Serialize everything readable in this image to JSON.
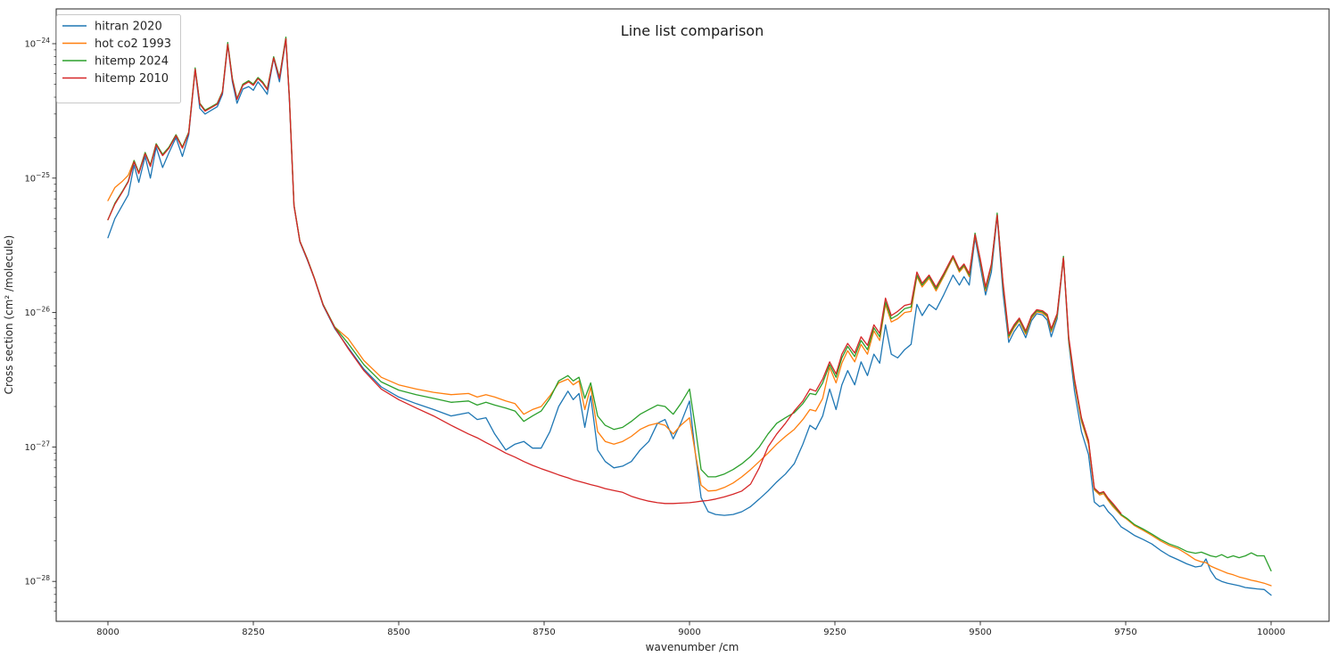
{
  "chart_data": {
    "type": "line",
    "title": "Line list comparison",
    "xlabel": "wavenumber /cm",
    "ylabel": "Cross section (cm² /molecule)",
    "grid": false,
    "y_scale": "log",
    "legend_position": "upper left",
    "xlim": [
      7911,
      10100
    ],
    "ylim": [
      5e-29,
      1.8e-24
    ],
    "xticks": [
      8000,
      8250,
      8500,
      8750,
      9000,
      9250,
      9500,
      9750,
      10000
    ],
    "ytick_exponents": [
      -24,
      -25,
      -26,
      -27,
      -28
    ],
    "x": [
      8000,
      8012,
      8025,
      8035,
      8045,
      8053,
      8064,
      8073,
      8083,
      8094,
      8105,
      8117,
      8128,
      8139,
      8150,
      8158,
      8167,
      8178,
      8188,
      8197,
      8206,
      8214,
      8222,
      8232,
      8242,
      8250,
      8258,
      8266,
      8274,
      8285,
      8295,
      8306,
      8312,
      8320,
      8330,
      8343,
      8355,
      8370,
      8390,
      8413,
      8440,
      8470,
      8500,
      8530,
      8560,
      8590,
      8620,
      8635,
      8650,
      8665,
      8684,
      8700,
      8715,
      8730,
      8745,
      8760,
      8775,
      8791,
      8800,
      8810,
      8820,
      8830,
      8842,
      8855,
      8870,
      8885,
      8900,
      8915,
      8930,
      8945,
      8958,
      8972,
      8985,
      9000,
      9010,
      9020,
      9032,
      9045,
      9060,
      9075,
      9090,
      9105,
      9120,
      9135,
      9150,
      9165,
      9180,
      9195,
      9207,
      9217,
      9229,
      9241,
      9252,
      9262,
      9272,
      9284,
      9295,
      9306,
      9317,
      9327,
      9337,
      9347,
      9358,
      9370,
      9381,
      9391,
      9400,
      9412,
      9424,
      9437,
      9453,
      9464,
      9472,
      9481,
      9491,
      9500,
      9509,
      9519,
      9529,
      9539,
      9549,
      9558,
      9567,
      9578,
      9588,
      9597,
      9607,
      9615,
      9622,
      9632,
      9643,
      9652,
      9662,
      9674,
      9686,
      9696,
      9705,
      9712,
      9720,
      9728,
      9742,
      9752,
      9765,
      9780,
      9795,
      9810,
      9825,
      9840,
      9855,
      9870,
      9880,
      9888,
      9896,
      9905,
      9915,
      9925,
      9935,
      9945,
      9956,
      9966,
      9976,
      9988,
      10000
    ],
    "series": [
      {
        "name": "hitran 2020",
        "color": "#1f77b4",
        "y": [
          3.6e-26,
          5e-26,
          6.3e-26,
          7.5e-26,
          1.25e-25,
          9.3e-26,
          1.45e-25,
          1e-25,
          1.7e-25,
          1.2e-25,
          1.55e-25,
          2e-25,
          1.45e-25,
          2.1e-25,
          6.4e-25,
          3.3e-25,
          3e-25,
          3.2e-25,
          3.4e-25,
          4.2e-25,
          9.8e-25,
          5.2e-25,
          3.6e-25,
          4.6e-25,
          4.8e-25,
          4.5e-25,
          5.2e-25,
          4.7e-25,
          4.2e-25,
          7.8e-25,
          5.2e-25,
          1.08e-24,
          3.8e-25,
          6.2e-26,
          3.35e-26,
          2.45e-26,
          1.78e-26,
          1.13e-26,
          7.6e-27,
          5.5e-27,
          3.8e-27,
          2.8e-27,
          2.35e-27,
          2.1e-27,
          1.9e-27,
          1.7e-27,
          1.8e-27,
          1.6e-27,
          1.65e-27,
          1.25e-27,
          9.5e-28,
          1.05e-27,
          1.1e-27,
          9.8e-28,
          9.8e-28,
          1.3e-27,
          2e-27,
          2.6e-27,
          2.25e-27,
          2.5e-27,
          1.4e-27,
          2.4e-27,
          9.5e-28,
          7.8e-28,
          7e-28,
          7.2e-28,
          7.8e-28,
          9.5e-28,
          1.1e-27,
          1.5e-27,
          1.6e-27,
          1.15e-27,
          1.5e-27,
          2.2e-27,
          9e-28,
          4.2e-28,
          3.3e-28,
          3.15e-28,
          3.1e-28,
          3.15e-28,
          3.3e-28,
          3.6e-28,
          4.1e-28,
          4.7e-28,
          5.5e-28,
          6.3e-28,
          7.5e-28,
          1.05e-27,
          1.45e-27,
          1.35e-27,
          1.7e-27,
          2.7e-27,
          1.9e-27,
          2.9e-27,
          3.7e-27,
          2.9e-27,
          4.3e-27,
          3.4e-27,
          4.9e-27,
          4.2e-27,
          8.1e-27,
          4.9e-27,
          4.6e-27,
          5.3e-27,
          5.8e-27,
          1.15e-26,
          9.5e-27,
          1.15e-26,
          1.05e-26,
          1.35e-26,
          1.9e-26,
          1.6e-26,
          1.85e-26,
          1.6e-26,
          3.6e-26,
          2.2e-26,
          1.35e-26,
          2e-26,
          5.2e-26,
          1.4e-26,
          6e-27,
          7.2e-27,
          8.2e-27,
          6.5e-27,
          8.7e-27,
          9.8e-27,
          9.6e-27,
          8.8e-27,
          6.6e-27,
          9e-27,
          2.55e-26,
          6e-27,
          2.6e-27,
          1.3e-27,
          8.8e-28,
          3.9e-28,
          3.6e-28,
          3.7e-28,
          3.3e-28,
          3.05e-28,
          2.55e-28,
          2.4e-28,
          2.2e-28,
          2.05e-28,
          1.9e-28,
          1.7e-28,
          1.55e-28,
          1.45e-28,
          1.35e-28,
          1.28e-28,
          1.3e-28,
          1.47e-28,
          1.2e-28,
          1.05e-28,
          1e-28,
          9.7e-29,
          9.5e-29,
          9.3e-29,
          9e-29,
          8.9e-29,
          8.8e-29,
          8.7e-29,
          7.9e-29
        ]
      },
      {
        "name": "hot co2 1993",
        "color": "#ff7f0e",
        "y": [
          6.8e-26,
          8.5e-26,
          9.5e-26,
          1.05e-25,
          1.35e-25,
          1.1e-25,
          1.55e-25,
          1.25e-25,
          1.8e-25,
          1.5e-25,
          1.7e-25,
          2.1e-25,
          1.7e-25,
          2.2e-25,
          6.5e-25,
          3.6e-25,
          3.2e-25,
          3.4e-25,
          3.6e-25,
          4.4e-25,
          1e-24,
          5.5e-25,
          3.9e-25,
          5e-25,
          5.3e-25,
          5e-25,
          5.6e-25,
          5.2e-25,
          4.6e-25,
          7.9e-25,
          5.6e-25,
          1.1e-24,
          4e-25,
          6.3e-26,
          3.4e-26,
          2.5e-26,
          1.8e-26,
          1.15e-26,
          7.8e-27,
          6.4e-27,
          4.4e-27,
          3.3e-27,
          2.9e-27,
          2.7e-27,
          2.55e-27,
          2.45e-27,
          2.5e-27,
          2.35e-27,
          2.45e-27,
          2.35e-27,
          2.2e-27,
          2.1e-27,
          1.75e-27,
          1.9e-27,
          2e-27,
          2.4e-27,
          3e-27,
          3.2e-27,
          2.9e-27,
          3.1e-27,
          1.9e-27,
          2.8e-27,
          1.3e-27,
          1.1e-27,
          1.05e-27,
          1.1e-27,
          1.2e-27,
          1.35e-27,
          1.45e-27,
          1.5e-27,
          1.45e-27,
          1.25e-27,
          1.45e-27,
          1.65e-27,
          9e-28,
          5.2e-28,
          4.7e-28,
          4.75e-28,
          5e-28,
          5.4e-28,
          6e-28,
          6.8e-28,
          7.8e-28,
          9e-28,
          1.05e-27,
          1.2e-27,
          1.35e-27,
          1.6e-27,
          1.9e-27,
          1.85e-27,
          2.3e-27,
          3.9e-27,
          3e-27,
          4.2e-27,
          5.2e-27,
          4.3e-27,
          5.8e-27,
          4.9e-27,
          7.3e-27,
          6.2e-27,
          1.15e-26,
          8.5e-27,
          9e-27,
          1e-26,
          1.02e-26,
          1.85e-26,
          1.55e-26,
          1.8e-26,
          1.45e-26,
          1.85e-26,
          2.55e-26,
          2e-26,
          2.2e-26,
          1.85e-26,
          3.75e-26,
          2.4e-26,
          1.45e-26,
          2.2e-26,
          5.35e-26,
          1.6e-26,
          6.5e-27,
          7.7e-27,
          8.7e-27,
          6.9e-27,
          9.1e-27,
          1.01e-26,
          9.9e-27,
          9.3e-27,
          7.2e-27,
          9.4e-27,
          2.58e-26,
          6.2e-27,
          3e-27,
          1.55e-27,
          1.05e-27,
          4.8e-28,
          4.4e-28,
          4.5e-28,
          4e-28,
          3.6e-28,
          3.1e-28,
          2.9e-28,
          2.6e-28,
          2.4e-28,
          2.2e-28,
          2e-28,
          1.85e-28,
          1.75e-28,
          1.6e-28,
          1.45e-28,
          1.4e-28,
          1.38e-28,
          1.3e-28,
          1.25e-28,
          1.2e-28,
          1.15e-28,
          1.12e-28,
          1.08e-28,
          1.05e-28,
          1.02e-28,
          1e-28,
          9.7e-29,
          9.3e-29
        ]
      },
      {
        "name": "hitemp 2024",
        "color": "#2ca02c",
        "y": [
          4.9e-26,
          6.5e-26,
          8e-26,
          9.5e-26,
          1.35e-25,
          1.1e-25,
          1.55e-25,
          1.25e-25,
          1.8e-25,
          1.5e-25,
          1.7e-25,
          2.1e-25,
          1.7e-25,
          2.2e-25,
          6.6e-25,
          3.6e-25,
          3.2e-25,
          3.4e-25,
          3.6e-25,
          4.4e-25,
          1.02e-24,
          5.5e-25,
          3.9e-25,
          5e-25,
          5.3e-25,
          5e-25,
          5.6e-25,
          5.2e-25,
          4.6e-25,
          8e-25,
          5.6e-25,
          1.12e-24,
          4e-25,
          6.3e-26,
          3.4e-26,
          2.5e-26,
          1.8e-26,
          1.15e-26,
          7.8e-27,
          5.9e-27,
          4.1e-27,
          3.05e-27,
          2.65e-27,
          2.45e-27,
          2.3e-27,
          2.15e-27,
          2.2e-27,
          2.05e-27,
          2.15e-27,
          2.05e-27,
          1.95e-27,
          1.85e-27,
          1.55e-27,
          1.7e-27,
          1.85e-27,
          2.3e-27,
          3.1e-27,
          3.4e-27,
          3.1e-27,
          3.3e-27,
          2.3e-27,
          3e-27,
          1.7e-27,
          1.45e-27,
          1.35e-27,
          1.4e-27,
          1.55e-27,
          1.75e-27,
          1.9e-27,
          2.05e-27,
          2e-27,
          1.75e-27,
          2.1e-27,
          2.7e-27,
          1.4e-27,
          6.8e-28,
          6e-28,
          6e-28,
          6.3e-28,
          6.8e-28,
          7.5e-28,
          8.5e-28,
          1e-27,
          1.25e-27,
          1.5e-27,
          1.65e-27,
          1.8e-27,
          2.1e-27,
          2.5e-27,
          2.45e-27,
          3e-27,
          4.1e-27,
          3.3e-27,
          4.6e-27,
          5.6e-27,
          4.7e-27,
          6.2e-27,
          5.3e-27,
          7.7e-27,
          6.6e-27,
          1.2e-26,
          9e-27,
          9.6e-27,
          1.07e-26,
          1.1e-26,
          1.9e-26,
          1.6e-26,
          1.85e-26,
          1.5e-26,
          1.9e-26,
          2.6e-26,
          2.05e-26,
          2.25e-26,
          1.9e-26,
          3.9e-26,
          2.45e-26,
          1.5e-26,
          2.25e-26,
          5.5e-26,
          1.65e-26,
          6.7e-27,
          7.9e-27,
          8.9e-27,
          7.1e-27,
          9.3e-27,
          1.03e-26,
          1.01e-26,
          9.5e-27,
          7.4e-27,
          9.6e-27,
          2.62e-26,
          6.4e-27,
          3.1e-27,
          1.6e-27,
          1.1e-27,
          4.9e-28,
          4.5e-28,
          4.6e-28,
          4.1e-28,
          3.7e-28,
          3.15e-28,
          2.95e-28,
          2.65e-28,
          2.45e-28,
          2.25e-28,
          2.05e-28,
          1.9e-28,
          1.8e-28,
          1.67e-28,
          1.62e-28,
          1.65e-28,
          1.6e-28,
          1.55e-28,
          1.52e-28,
          1.58e-28,
          1.5e-28,
          1.55e-28,
          1.5e-28,
          1.55e-28,
          1.63e-28,
          1.55e-28,
          1.55e-28,
          1.2e-28
        ]
      },
      {
        "name": "hitemp 2010",
        "color": "#d62728",
        "y": [
          4.9e-26,
          6.4e-26,
          7.9e-26,
          9.4e-26,
          1.32e-25,
          1.08e-25,
          1.52e-25,
          1.22e-25,
          1.77e-25,
          1.47e-25,
          1.67e-25,
          2.07e-25,
          1.67e-25,
          2.17e-25,
          6.45e-25,
          3.55e-25,
          3.15e-25,
          3.35e-25,
          3.55e-25,
          4.35e-25,
          9.9e-25,
          5.4e-25,
          3.85e-25,
          4.9e-25,
          5.2e-25,
          4.9e-25,
          5.5e-25,
          5.1e-25,
          4.55e-25,
          7.85e-25,
          5.5e-25,
          1.09e-24,
          3.95e-25,
          6.25e-26,
          3.38e-26,
          2.48e-26,
          1.79e-26,
          1.14e-26,
          7.7e-27,
          5.4e-27,
          3.7e-27,
          2.7e-27,
          2.25e-27,
          1.95e-27,
          1.7e-27,
          1.45e-27,
          1.25e-27,
          1.17e-27,
          1.08e-27,
          1e-27,
          9e-28,
          8.4e-28,
          7.8e-28,
          7.3e-28,
          6.9e-28,
          6.55e-28,
          6.2e-28,
          5.9e-28,
          5.7e-28,
          5.55e-28,
          5.4e-28,
          5.25e-28,
          5.1e-28,
          4.9e-28,
          4.75e-28,
          4.6e-28,
          4.3e-28,
          4.1e-28,
          3.95e-28,
          3.85e-28,
          3.8e-28,
          3.8e-28,
          3.82e-28,
          3.85e-28,
          3.9e-28,
          3.95e-28,
          4e-28,
          4.1e-28,
          4.25e-28,
          4.45e-28,
          4.7e-28,
          5.3e-28,
          7e-28,
          1e-27,
          1.25e-27,
          1.5e-27,
          1.85e-27,
          2.2e-27,
          2.7e-27,
          2.6e-27,
          3.2e-27,
          4.3e-27,
          3.5e-27,
          4.9e-27,
          5.9e-27,
          5e-27,
          6.6e-27,
          5.7e-27,
          8.1e-27,
          7e-27,
          1.28e-26,
          9.5e-27,
          1.02e-26,
          1.13e-26,
          1.16e-26,
          2e-26,
          1.65e-26,
          1.9e-26,
          1.55e-26,
          1.95e-26,
          2.65e-26,
          2.1e-26,
          2.3e-26,
          1.95e-26,
          3.8e-26,
          2.5e-26,
          1.55e-26,
          2.3e-26,
          5.3e-26,
          1.7e-26,
          6.9e-27,
          8.1e-27,
          9.1e-27,
          7.3e-27,
          9.5e-27,
          1.05e-26,
          1.03e-26,
          9.7e-27,
          7.6e-27,
          9.8e-27,
          2.55e-26,
          6.6e-27,
          3.2e-27,
          1.65e-27,
          1.12e-27,
          4.95e-28,
          4.55e-28,
          4.65e-28,
          4.15e-28,
          3.8e-28,
          3.2e-28,
          null,
          null,
          null,
          null,
          null,
          null,
          null,
          null,
          null,
          null,
          null,
          null,
          null,
          null,
          null,
          null,
          null,
          null,
          null,
          null,
          null,
          null
        ]
      }
    ]
  }
}
